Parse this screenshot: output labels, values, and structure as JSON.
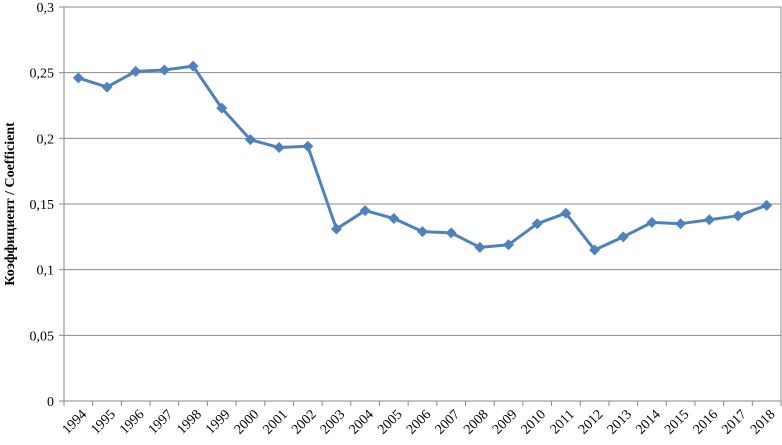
{
  "chart_data": {
    "type": "line",
    "title": "",
    "xlabel": "",
    "ylabel": "Коэффициент / Coefficient",
    "x": [
      "1994",
      "1995",
      "1996",
      "1997",
      "1998",
      "1999",
      "2000",
      "2001",
      "2002",
      "2003",
      "2004",
      "2005",
      "2006",
      "2007",
      "2008",
      "2009",
      "2010",
      "2011",
      "2012",
      "2013",
      "2014",
      "2015",
      "2016",
      "2017",
      "2018"
    ],
    "series": [
      {
        "values": [
          0.246,
          0.239,
          0.251,
          0.252,
          0.255,
          0.223,
          0.199,
          0.193,
          0.194,
          0.131,
          0.145,
          0.139,
          0.129,
          0.128,
          0.117,
          0.119,
          0.135,
          0.143,
          0.115,
          0.125,
          0.136,
          0.135,
          0.138,
          0.141,
          0.149
        ]
      }
    ],
    "yticks": [
      "0",
      "0,05",
      "0,1",
      "0,15",
      "0,2",
      "0,25",
      "0,3"
    ],
    "ylim": [
      0,
      0.3
    ],
    "grid": true,
    "legend": "none",
    "colors": {
      "line": "#4F81BD",
      "grid": "#898989",
      "axis": "#898989"
    }
  }
}
